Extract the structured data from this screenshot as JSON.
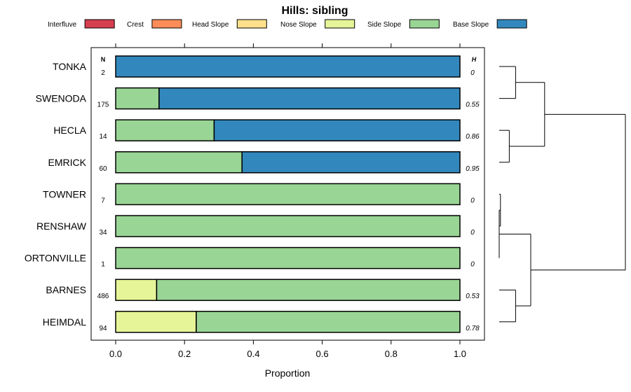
{
  "chart_data": {
    "type": "bar",
    "subtype": "stacked-horizontal-proportion",
    "title": "Hills: sibling",
    "xlabel": "Proportion",
    "ylabel": "",
    "xlim": [
      0,
      1
    ],
    "xticks": [
      "0.0",
      "0.2",
      "0.4",
      "0.6",
      "0.8",
      "1.0"
    ],
    "xtick_values": [
      0,
      0.2,
      0.4,
      0.6,
      0.8,
      1.0
    ],
    "n_header": "N",
    "h_header": "H",
    "legend": [
      {
        "name": "Interfluve",
        "color": "#d53e4f"
      },
      {
        "name": "Crest",
        "color": "#fc8d59"
      },
      {
        "name": "Head Slope",
        "color": "#fee08b"
      },
      {
        "name": "Nose Slope",
        "color": "#e6f598"
      },
      {
        "name": "Side Slope",
        "color": "#99d594"
      },
      {
        "name": "Base Slope",
        "color": "#3288bd"
      }
    ],
    "series_order": [
      "Interfluve",
      "Crest",
      "Head Slope",
      "Nose Slope",
      "Side Slope",
      "Base Slope"
    ],
    "rows": [
      {
        "label": "TONKA",
        "n": "2",
        "h": "0",
        "values": [
          0,
          0,
          0,
          0,
          0,
          1.0
        ]
      },
      {
        "label": "SWENODA",
        "n": "175",
        "h": "0.55",
        "values": [
          0,
          0,
          0,
          0,
          0.126,
          0.874
        ]
      },
      {
        "label": "HECLA",
        "n": "14",
        "h": "0.86",
        "values": [
          0,
          0,
          0,
          0,
          0.286,
          0.714
        ]
      },
      {
        "label": "EMRICK",
        "n": "60",
        "h": "0.95",
        "values": [
          0,
          0,
          0,
          0,
          0.367,
          0.633
        ]
      },
      {
        "label": "TOWNER",
        "n": "7",
        "h": "0",
        "values": [
          0,
          0,
          0,
          0,
          1.0,
          0
        ]
      },
      {
        "label": "RENSHAW",
        "n": "34",
        "h": "0",
        "values": [
          0,
          0,
          0,
          0,
          1.0,
          0
        ]
      },
      {
        "label": "ORTONVILLE",
        "n": "1",
        "h": "0",
        "values": [
          0,
          0,
          0,
          0,
          1.0,
          0
        ]
      },
      {
        "label": "BARNES",
        "n": "486",
        "h": "0.53",
        "values": [
          0,
          0,
          0,
          0.119,
          0.881,
          0
        ]
      },
      {
        "label": "HEIMDAL",
        "n": "94",
        "h": "0.78",
        "values": [
          0,
          0,
          0,
          0.234,
          0.766,
          0
        ]
      }
    ],
    "dendrogram": {
      "leaves": [
        "TONKA",
        "SWENODA",
        "HECLA",
        "EMRICK",
        "TOWNER",
        "RENSHAW",
        "ORTONVILLE",
        "BARNES",
        "HEIMDAL"
      ],
      "max_height": 1.0,
      "merges": [
        {
          "left": "TONKA",
          "right": "SWENODA",
          "height": 0.13
        },
        {
          "left": "HECLA",
          "right": "EMRICK",
          "height": 0.08
        },
        {
          "left": "A",
          "right": "B",
          "height": 0.36,
          "id": "C"
        },
        {
          "left": "TOWNER",
          "right": "RENSHAW",
          "height": 0.01,
          "id": "D"
        },
        {
          "left": "D",
          "right": "ORTONVILLE",
          "height": 0.0,
          "id": "E"
        },
        {
          "left": "BARNES",
          "right": "HEIMDAL",
          "height": 0.13,
          "id": "F"
        },
        {
          "left": "E",
          "right": "F",
          "height": 0.25,
          "id": "G"
        },
        {
          "left": "C",
          "right": "G",
          "height": 1.0,
          "id": "root"
        }
      ]
    }
  }
}
